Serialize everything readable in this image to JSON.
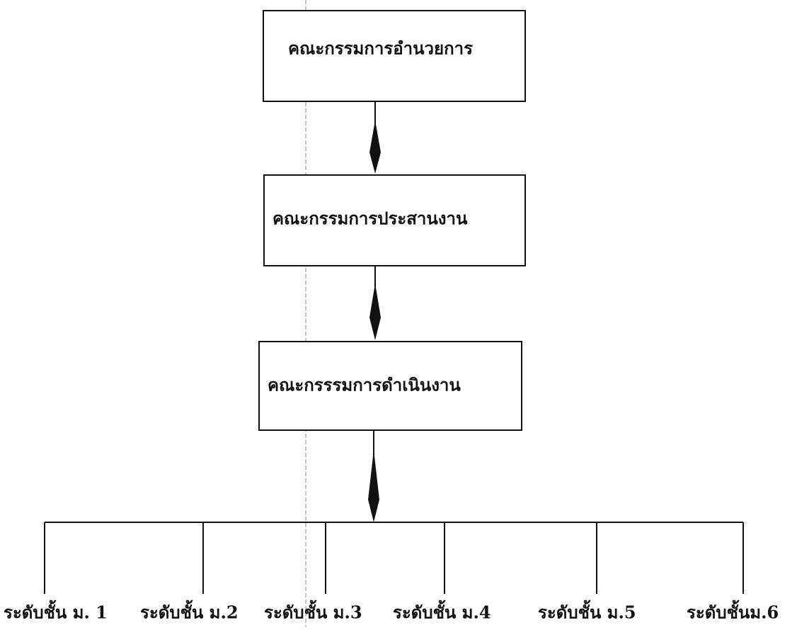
{
  "nodes": [
    {
      "label": "คณะกรรมการอำนวยการ"
    },
    {
      "label": "คณะกรรมการประสานงาน"
    },
    {
      "label": "คณะกรรรมการดำเนินงาน"
    }
  ],
  "levels": [
    "ระดับชั้น ม. 1",
    "ระดับชั้น ม.2",
    "ระดับชั้น ม.3",
    "ระดับชั้น ม.4",
    "ระดับชั้น ม.5",
    "ระดับชั้นม.6"
  ]
}
